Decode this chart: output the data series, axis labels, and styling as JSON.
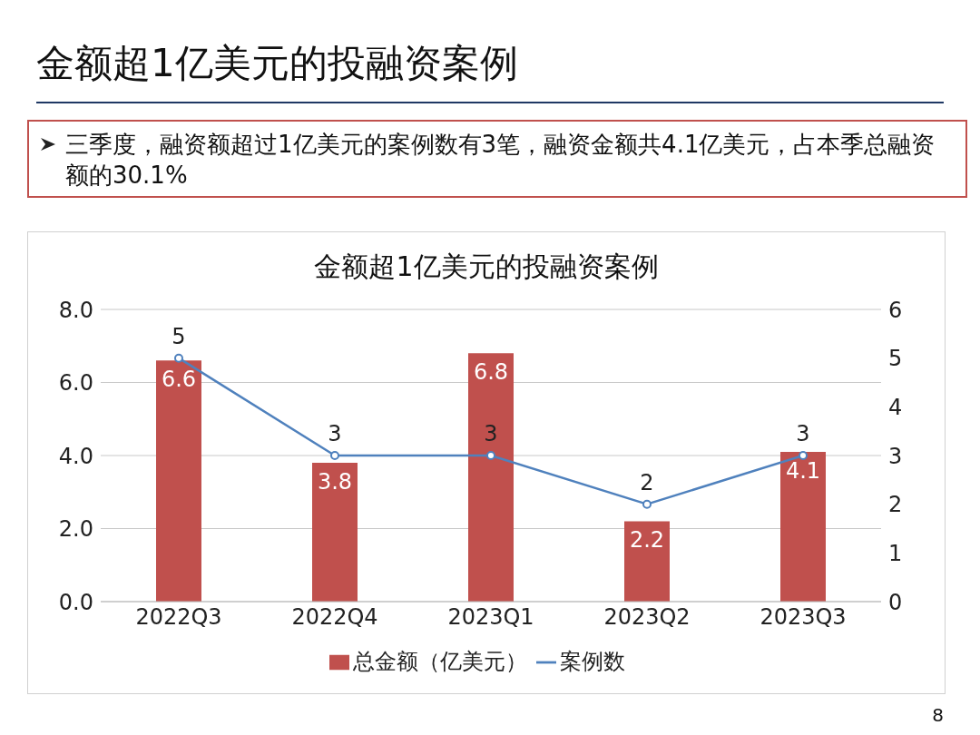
{
  "chart_data": {
    "type": "bar",
    "title": "金额超1亿美元的投融资案例",
    "annotations": [
      "金额超1亿美元的投融资案例",
      "三季度，融资额超过1亿美元的案例数有3笔，融资金额共4.1亿美元，占本季总融资额的30.1%",
      "8"
    ],
    "categories": [
      "2022Q3",
      "2022Q4",
      "2023Q1",
      "2023Q2",
      "2023Q3"
    ],
    "series": [
      {
        "name": "总金额（亿美元）",
        "color": "#c0504d",
        "values": [
          6.6,
          3.8,
          6.8,
          2.2,
          4.1
        ]
      },
      {
        "name": "案例数",
        "type": "line",
        "axis": "y2",
        "color": "#4f81bd",
        "values": [
          5,
          3,
          3,
          2,
          3
        ]
      }
    ],
    "ylim": [
      0,
      8
    ],
    "yticks": [
      {
        "value": 0,
        "label": "0.0"
      },
      {
        "value": 2,
        "label": "2.0"
      },
      {
        "value": 4,
        "label": "4.0"
      },
      {
        "value": 6,
        "label": "6.0"
      },
      {
        "value": 8,
        "label": "8.0"
      }
    ],
    "y2lim": [
      0,
      6
    ],
    "y2ticks": [
      0,
      1,
      2,
      3,
      4,
      5,
      6
    ],
    "grid": "y",
    "legend": "bottom",
    "marker": "circle",
    "line_style": "solid",
    "data_labels": true
  }
}
